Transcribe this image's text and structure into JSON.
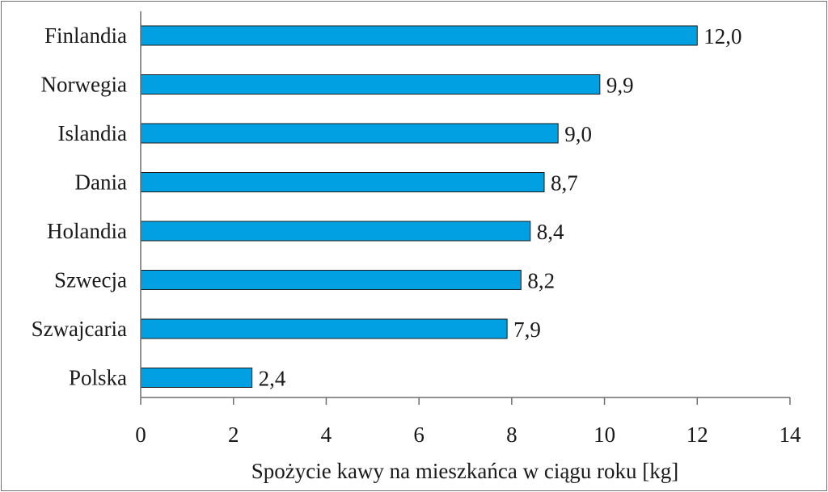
{
  "chart_data": {
    "type": "bar",
    "orientation": "horizontal",
    "categories": [
      "Finlandia",
      "Norwegia",
      "Islandia",
      "Dania",
      "Holandia",
      "Szwecja",
      "Szwajcaria",
      "Polska"
    ],
    "values": [
      12.0,
      9.9,
      9.0,
      8.7,
      8.4,
      8.2,
      7.9,
      2.4
    ],
    "value_labels": [
      "12,0",
      "9,9",
      "9,0",
      "8,7",
      "8,4",
      "8,2",
      "7,9",
      "2,4"
    ],
    "title": "",
    "xlabel": "Spożycie kawy na mieszkańca w ciągu roku [kg]",
    "ylabel": "",
    "xlim": [
      0,
      14
    ],
    "xticks": [
      0,
      2,
      4,
      6,
      8,
      10,
      12,
      14
    ],
    "xtick_labels": [
      "0",
      "2",
      "4",
      "6",
      "8",
      "10",
      "12",
      "14"
    ],
    "grid": false,
    "legend": "none",
    "bar_color": "#00a0e3",
    "bar_border_color": "#1a1a1a"
  }
}
